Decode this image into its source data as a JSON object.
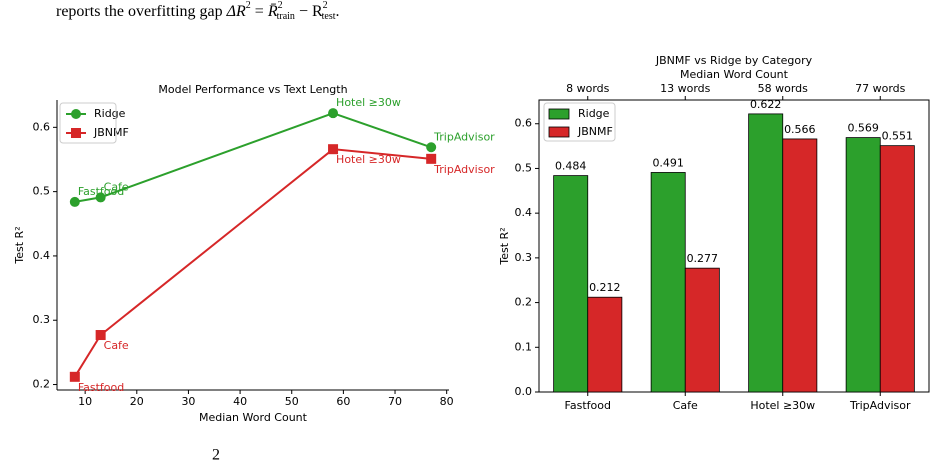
{
  "caption": {
    "prefix": "reports the overfitting gap ",
    "delta": "ΔR",
    "sup1": "2",
    "eq": " = ",
    "rbar": "R̄",
    "sup2": "2",
    "sub_train": "train",
    "minus": " − R",
    "sup3": "2",
    "sub_test": "test",
    "end": "."
  },
  "bottom_fragment": "2",
  "chart_data": [
    {
      "type": "line",
      "title": "Model Performance vs Text Length",
      "xlabel": "Median Word Count",
      "ylabel": "Test R²",
      "x": [
        8,
        13,
        58,
        77
      ],
      "point_labels": [
        "Fastfood",
        "Cafe",
        "Hotel ≥30w",
        "TripAdvisor"
      ],
      "series": [
        {
          "name": "Ridge",
          "color": "#2ca02c",
          "marker": "circle",
          "values": [
            0.484,
            0.491,
            0.622,
            0.569
          ]
        },
        {
          "name": "JBNMF",
          "color": "#d62728",
          "marker": "square",
          "values": [
            0.212,
            0.277,
            0.566,
            0.551
          ]
        }
      ],
      "xlim": [
        4.55,
        80.45
      ],
      "xticks": [
        10,
        20,
        30,
        40,
        50,
        60,
        70,
        80
      ],
      "ylim": [
        0.1915,
        0.6425
      ],
      "yticks": [
        0.2,
        0.3,
        0.4,
        0.5,
        0.6
      ],
      "legend": "upper left"
    },
    {
      "type": "bar",
      "title": "JBNMF vs Ridge by Category",
      "top_axis_label": "Median Word Count",
      "ylabel": "Test R²",
      "categories": [
        "Fastfood",
        "Cafe",
        "Hotel ≥30w",
        "TripAdvisor"
      ],
      "top_categories": [
        "8 words",
        "13 words",
        "58 words",
        "77 words"
      ],
      "series": [
        {
          "name": "Ridge",
          "color": "#2ca02c",
          "values": [
            0.484,
            0.491,
            0.622,
            0.569
          ]
        },
        {
          "name": "JBNMF",
          "color": "#d62728",
          "values": [
            0.212,
            0.277,
            0.566,
            0.551
          ]
        }
      ],
      "ylim": [
        0,
        0.6531
      ],
      "yticks": [
        {
          "value": 0,
          "label": "0.0"
        },
        0.1,
        0.2,
        0.3,
        0.4,
        0.5,
        0.6
      ],
      "legend": "upper left"
    }
  ]
}
